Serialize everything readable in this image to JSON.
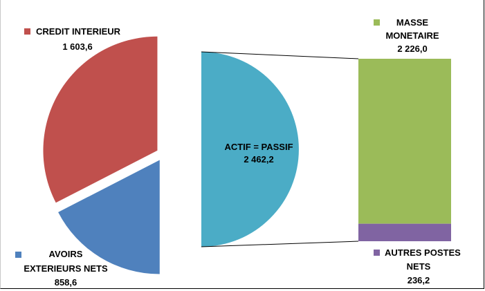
{
  "chart_data": {
    "type": "pie",
    "subtype": "pie-of-bar",
    "left_pie": {
      "slices": [
        {
          "label": "CREDIT INTERIEUR",
          "value": 1603.6,
          "value_label": "1 603,6",
          "color": "#c0504d"
        },
        {
          "label_lines": [
            "AVOIRS",
            "EXTERIEURS NETS"
          ],
          "value": 858.6,
          "value_label": "858,6",
          "color": "#4f81bd"
        }
      ]
    },
    "center": {
      "label": "ACTIF = PASSIF",
      "value": 2462.2,
      "value_label": "2 462,2",
      "color": "#4bacc6"
    },
    "stack": {
      "segments": [
        {
          "label_lines": [
            "MASSE",
            "MONETAIRE"
          ],
          "value": 2226.0,
          "value_label": "2 226,0",
          "color": "#9bbb59"
        },
        {
          "label_lines": [
            "AUTRES POSTES",
            "NETS"
          ],
          "value": 236.2,
          "value_label": "236,2",
          "color": "#8064a2"
        }
      ]
    }
  }
}
